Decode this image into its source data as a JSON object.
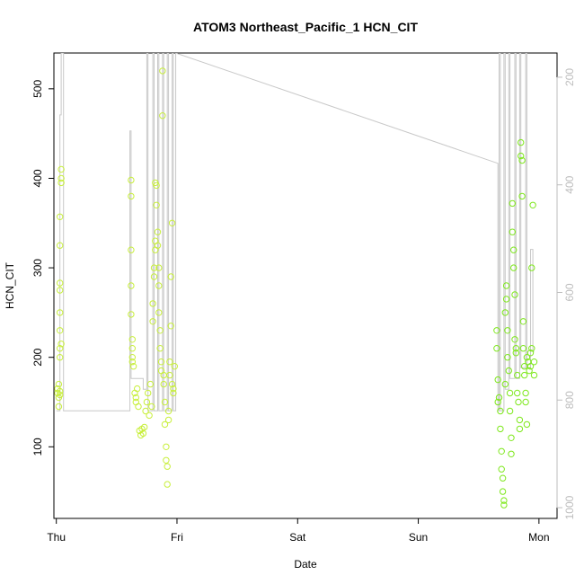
{
  "chart_data": {
    "type": "scatter",
    "title": "ATOM3 Northeast_Pacific_1 HCN_CIT",
    "xlabel": "Date",
    "ylabel": "HCN_CIT",
    "x_ticks": [
      "Thu",
      "Fri",
      "Sat",
      "Sun",
      "Mon"
    ],
    "xlim": [
      -0.02,
      4.15
    ],
    "ylim": [
      20,
      540
    ],
    "y_ticks": [
      100,
      200,
      300,
      400,
      500
    ],
    "y2_label": "",
    "y2lim_inverted": [
      1020,
      155
    ],
    "y2_ticks": [
      200,
      400,
      600,
      800,
      1000
    ],
    "grid": false,
    "colors": {
      "points_early": "#c8ef3c",
      "points_late": "#7ee81c",
      "pressure_line": "#c8c8c8"
    },
    "series": [
      {
        "points": [
          [
            0.01,
            165
          ],
          [
            0.01,
            160
          ],
          [
            0.02,
            170
          ],
          [
            0.02,
            155
          ],
          [
            0.02,
            145
          ],
          [
            0.03,
            158
          ],
          [
            0.03,
            162
          ],
          [
            0.03,
            200
          ],
          [
            0.03,
            210
          ],
          [
            0.03,
            230
          ],
          [
            0.03,
            250
          ],
          [
            0.03,
            275
          ],
          [
            0.03,
            283
          ],
          [
            0.03,
            325
          ],
          [
            0.03,
            357
          ],
          [
            0.04,
            395
          ],
          [
            0.04,
            400
          ],
          [
            0.04,
            410
          ],
          [
            0.04,
            215
          ],
          [
            0.62,
            398
          ],
          [
            0.62,
            380
          ],
          [
            0.62,
            320
          ],
          [
            0.62,
            280
          ],
          [
            0.62,
            248
          ],
          [
            0.63,
            220
          ],
          [
            0.63,
            210
          ],
          [
            0.63,
            200
          ],
          [
            0.63,
            195
          ],
          [
            0.64,
            190
          ],
          [
            0.65,
            160
          ],
          [
            0.66,
            155
          ],
          [
            0.66,
            150
          ],
          [
            0.67,
            165
          ],
          [
            0.68,
            145
          ],
          [
            0.69,
            118
          ],
          [
            0.7,
            113
          ],
          [
            0.71,
            120
          ],
          [
            0.72,
            115
          ],
          [
            0.73,
            122
          ],
          [
            0.74,
            140
          ],
          [
            0.75,
            150
          ],
          [
            0.76,
            160
          ],
          [
            0.77,
            135
          ],
          [
            0.78,
            170
          ],
          [
            0.79,
            145
          ],
          [
            0.8,
            260
          ],
          [
            0.8,
            240
          ],
          [
            0.81,
            290
          ],
          [
            0.81,
            300
          ],
          [
            0.82,
            320
          ],
          [
            0.82,
            330
          ],
          [
            0.82,
            395
          ],
          [
            0.83,
            392
          ],
          [
            0.83,
            370
          ],
          [
            0.84,
            340
          ],
          [
            0.84,
            325
          ],
          [
            0.85,
            300
          ],
          [
            0.85,
            280
          ],
          [
            0.85,
            250
          ],
          [
            0.86,
            230
          ],
          [
            0.86,
            210
          ],
          [
            0.87,
            195
          ],
          [
            0.87,
            185
          ],
          [
            0.88,
            520
          ],
          [
            0.88,
            470
          ],
          [
            0.89,
            180
          ],
          [
            0.89,
            170
          ],
          [
            0.9,
            150
          ],
          [
            0.9,
            125
          ],
          [
            0.91,
            100
          ],
          [
            0.91,
            85
          ],
          [
            0.92,
            78
          ],
          [
            0.92,
            58
          ],
          [
            0.93,
            140
          ],
          [
            0.93,
            130
          ],
          [
            0.94,
            180
          ],
          [
            0.94,
            195
          ],
          [
            0.95,
            290
          ],
          [
            0.95,
            235
          ],
          [
            0.96,
            350
          ],
          [
            0.96,
            170
          ],
          [
            0.97,
            160
          ],
          [
            0.97,
            165
          ],
          [
            0.98,
            190
          ]
        ]
      },
      {
        "points": [
          [
            3.65,
            230
          ],
          [
            3.65,
            210
          ],
          [
            3.66,
            175
          ],
          [
            3.66,
            150
          ],
          [
            3.67,
            155
          ],
          [
            3.68,
            140
          ],
          [
            3.68,
            120
          ],
          [
            3.69,
            95
          ],
          [
            3.69,
            75
          ],
          [
            3.7,
            65
          ],
          [
            3.7,
            50
          ],
          [
            3.71,
            40
          ],
          [
            3.71,
            35
          ],
          [
            3.72,
            170
          ],
          [
            3.72,
            250
          ],
          [
            3.73,
            280
          ],
          [
            3.73,
            265
          ],
          [
            3.74,
            200
          ],
          [
            3.74,
            230
          ],
          [
            3.75,
            185
          ],
          [
            3.76,
            160
          ],
          [
            3.76,
            140
          ],
          [
            3.77,
            110
          ],
          [
            3.77,
            92
          ],
          [
            3.78,
            372
          ],
          [
            3.78,
            340
          ],
          [
            3.79,
            320
          ],
          [
            3.79,
            300
          ],
          [
            3.8,
            270
          ],
          [
            3.8,
            220
          ],
          [
            3.81,
            210
          ],
          [
            3.81,
            205
          ],
          [
            3.82,
            180
          ],
          [
            3.82,
            160
          ],
          [
            3.83,
            150
          ],
          [
            3.84,
            130
          ],
          [
            3.84,
            120
          ],
          [
            3.85,
            440
          ],
          [
            3.85,
            425
          ],
          [
            3.86,
            420
          ],
          [
            3.86,
            380
          ],
          [
            3.87,
            240
          ],
          [
            3.87,
            210
          ],
          [
            3.88,
            190
          ],
          [
            3.88,
            180
          ],
          [
            3.89,
            160
          ],
          [
            3.89,
            150
          ],
          [
            3.9,
            125
          ],
          [
            3.9,
            200
          ],
          [
            3.91,
            195
          ],
          [
            3.92,
            185
          ],
          [
            3.93,
            205
          ],
          [
            3.93,
            190
          ],
          [
            3.94,
            210
          ],
          [
            3.94,
            300
          ],
          [
            3.95,
            370
          ],
          [
            3.96,
            195
          ],
          [
            3.96,
            180
          ]
        ]
      }
    ],
    "pressure_line": [
      [
        0.0,
        820
      ],
      [
        0.03,
        820
      ],
      [
        0.03,
        270
      ],
      [
        0.04,
        270
      ],
      [
        0.04,
        155
      ],
      [
        0.06,
        155
      ],
      [
        0.06,
        820
      ],
      [
        0.61,
        820
      ],
      [
        0.61,
        300
      ],
      [
        0.62,
        300
      ],
      [
        0.62,
        760
      ],
      [
        0.72,
        760
      ],
      [
        0.72,
        780
      ],
      [
        0.75,
        780
      ],
      [
        0.75,
        155
      ],
      [
        0.76,
        155
      ],
      [
        0.76,
        820
      ],
      [
        0.8,
        820
      ],
      [
        0.8,
        155
      ],
      [
        0.81,
        155
      ],
      [
        0.81,
        820
      ],
      [
        0.84,
        820
      ],
      [
        0.84,
        155
      ],
      [
        0.85,
        155
      ],
      [
        0.85,
        820
      ],
      [
        0.88,
        820
      ],
      [
        0.88,
        155
      ],
      [
        0.89,
        155
      ],
      [
        0.89,
        820
      ],
      [
        0.92,
        820
      ],
      [
        0.92,
        155
      ],
      [
        0.93,
        155
      ],
      [
        0.93,
        820
      ],
      [
        0.96,
        820
      ],
      [
        0.96,
        155
      ],
      [
        0.97,
        155
      ],
      [
        0.97,
        820
      ],
      [
        0.99,
        820
      ],
      [
        0.99,
        155
      ],
      [
        3.66,
        360
      ],
      [
        3.66,
        820
      ],
      [
        3.67,
        820
      ],
      [
        3.67,
        155
      ],
      [
        3.68,
        155
      ],
      [
        3.68,
        820
      ],
      [
        3.71,
        820
      ],
      [
        3.71,
        155
      ],
      [
        3.72,
        155
      ],
      [
        3.72,
        780
      ],
      [
        3.75,
        780
      ],
      [
        3.75,
        155
      ],
      [
        3.76,
        155
      ],
      [
        3.76,
        760
      ],
      [
        3.8,
        760
      ],
      [
        3.8,
        155
      ],
      [
        3.81,
        155
      ],
      [
        3.81,
        760
      ],
      [
        3.84,
        760
      ],
      [
        3.84,
        155
      ],
      [
        3.85,
        155
      ],
      [
        3.85,
        740
      ],
      [
        3.89,
        740
      ],
      [
        3.89,
        155
      ],
      [
        3.9,
        155
      ],
      [
        3.9,
        740
      ],
      [
        3.93,
        740
      ],
      [
        3.93,
        520
      ],
      [
        3.95,
        520
      ],
      [
        3.95,
        710
      ],
      [
        3.96,
        710
      ]
    ]
  }
}
